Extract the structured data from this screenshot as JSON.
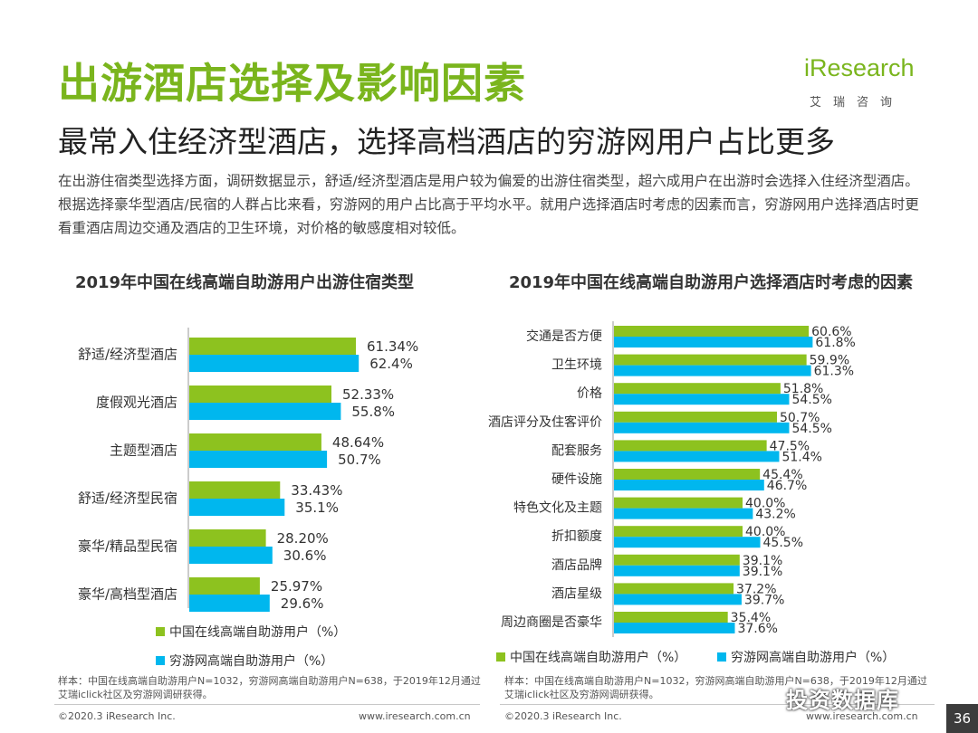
{
  "header": {
    "title": "出游酒店选择及影响因素",
    "subtitle": "最常入住经济型酒店，选择高档酒店的穷游网用户占比更多",
    "description": "在出游住宿类型选择方面，调研数据显示，舒适/经济型酒店是用户较为偏爱的出游住宿类型，超六成用户在出游时会选择入住经济型酒店。根据选择豪华型酒店/民宿的人群占比来看，穷游网的用户占比高于平均水平。就用户选择酒店时考虑的因素而言，穷游网用户选择酒店时更看重酒店周边交通及酒店的卫生环境，对价格的敏感度相对较低。"
  },
  "logo": {
    "name": "iResearch",
    "subtitle": "艾瑞咨询"
  },
  "colors": {
    "green": "#8dc21f",
    "blue": "#00b7ee",
    "title_green": "#7ab51d"
  },
  "chart_data": [
    {
      "type": "bar",
      "orientation": "horizontal",
      "title": "2019年中国在线高端自助游用户出游住宿类型",
      "categories": [
        "舒适/经济型酒店",
        "度假观光酒店",
        "主题型酒店",
        "舒适/经济型民宿",
        "豪华/精品型民宿",
        "豪华/高档型酒店"
      ],
      "series": [
        {
          "name": "中国在线高端自助游用户（%）",
          "values": [
            61.34,
            52.33,
            48.64,
            33.43,
            28.2,
            25.97
          ],
          "labels": [
            "61.34%",
            "52.33%",
            "48.64%",
            "33.43%",
            "28.20%",
            "25.97%"
          ]
        },
        {
          "name": "穷游网高端自助游用户（%）",
          "values": [
            62.4,
            55.8,
            50.7,
            35.1,
            30.6,
            29.6
          ],
          "labels": [
            "62.4%",
            "55.8%",
            "50.7%",
            "35.1%",
            "30.6%",
            "29.6%"
          ]
        }
      ],
      "xlim": [
        0,
        100
      ],
      "legend": "bottom",
      "note": "样本：中国在线高端自助游用户N=1032，穷游网高端自助游用户N=638，于2019年12月通过艾瑞iclick社区及穷游网调研获得。"
    },
    {
      "type": "bar",
      "orientation": "horizontal",
      "title": "2019年中国在线高端自助游用户选择酒店时考虑的因素",
      "categories": [
        "交通是否方便",
        "卫生环境",
        "价格",
        "酒店评分及住客评价",
        "配套服务",
        "硬件设施",
        "特色文化及主题",
        "折扣额度",
        "酒店品牌",
        "酒店星级",
        "周边商圈是否豪华"
      ],
      "series": [
        {
          "name": "中国在线高端自助游用户（%）",
          "values": [
            60.6,
            59.9,
            51.8,
            50.7,
            47.5,
            45.4,
            40.0,
            40.0,
            39.1,
            37.2,
            35.4
          ],
          "labels": [
            "60.6%",
            "59.9%",
            "51.8%",
            "50.7%",
            "47.5%",
            "45.4%",
            "40.0%",
            "40.0%",
            "39.1%",
            "37.2%",
            "35.4%"
          ]
        },
        {
          "name": "穷游网高端自助游用户（%）",
          "values": [
            61.8,
            61.3,
            54.5,
            54.5,
            51.4,
            46.7,
            43.2,
            45.5,
            39.1,
            39.7,
            37.6
          ],
          "labels": [
            "61.8%",
            "61.3%",
            "54.5%",
            "54.5%",
            "51.4%",
            "46.7%",
            "43.2%",
            "45.5%",
            "39.1%",
            "39.7%",
            "37.6%"
          ]
        }
      ],
      "xlim": [
        0,
        100
      ],
      "legend": "bottom",
      "note": "样本：中国在线高端自助游用户N=1032，穷游网高端自助游用户N=638，于2019年12月通过艾瑞iclick社区及穷游网调研获得。"
    }
  ],
  "footer": {
    "left_copyright": "©2020.3 iResearch Inc.",
    "left_url": "www.iresearch.com.cn",
    "right_copyright": "©2020.3 iResearch Inc.",
    "right_url": "www.iresearch.com.cn",
    "page_number": "36",
    "watermark": "投资数据库"
  }
}
